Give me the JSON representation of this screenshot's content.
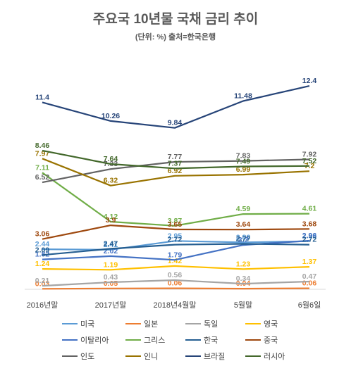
{
  "title": "주요국 10년물 국채 금리 추이",
  "subtitle": "(단위: %) 출처=한국은행",
  "chart_data": {
    "type": "line",
    "title": "주요국 10년물 국채 금리 추이",
    "subtitle": "(단위: %) 출처=한국은행",
    "categories": [
      "2016년말",
      "2017년말",
      "2018년4월말",
      "5월말",
      "6월6일"
    ],
    "xlabel": "",
    "ylabel": "",
    "ylim": [
      0,
      14
    ],
    "grid": false,
    "legend_position": "bottom",
    "series": [
      {
        "name": "미국",
        "color": "#5b9bd5",
        "values": [
          2.44,
          2.41,
          2.95,
          2.86,
          2.93
        ]
      },
      {
        "name": "일본",
        "color": "#ed7d31",
        "values": [
          0.03,
          0.05,
          0.06,
          0.04,
          0.06
        ]
      },
      {
        "name": "독일",
        "color": "#a5a5a5",
        "values": [
          0.21,
          0.43,
          0.56,
          0.34,
          0.47
        ]
      },
      {
        "name": "영국",
        "color": "#ffc000",
        "values": [
          1.24,
          1.19,
          1.42,
          1.23,
          1.37
        ]
      },
      {
        "name": "이탈리아",
        "color": "#4472c4",
        "values": [
          1.82,
          2.02,
          1.79,
          2.7,
          2.96
        ]
      },
      {
        "name": "그리스",
        "color": "#70ad47",
        "values": [
          7.11,
          4.12,
          3.87,
          4.59,
          4.61
        ]
      },
      {
        "name": "한국",
        "color": "#255e91",
        "values": [
          2.09,
          2.47,
          2.72,
          2.77,
          2.72
        ]
      },
      {
        "name": "중국",
        "color": "#9e480e",
        "values": [
          3.06,
          3.9,
          3.65,
          3.64,
          3.68
        ]
      },
      {
        "name": "인도",
        "color": "#636363",
        "values": [
          6.52,
          7.33,
          7.77,
          7.83,
          7.92
        ]
      },
      {
        "name": "인니",
        "color": "#997300",
        "values": [
          7.97,
          6.32,
          6.92,
          6.99,
          7.2
        ]
      },
      {
        "name": "브라질",
        "color": "#264478",
        "values": [
          11.4,
          10.26,
          9.84,
          11.48,
          12.4
        ]
      },
      {
        "name": "러시아",
        "color": "#43682b",
        "values": [
          8.46,
          7.64,
          7.37,
          7.49,
          7.52
        ]
      }
    ]
  }
}
